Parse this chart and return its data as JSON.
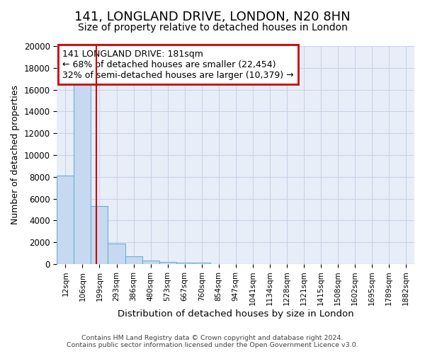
{
  "title": "141, LONGLAND DRIVE, LONDON, N20 8HN",
  "subtitle": "Size of property relative to detached houses in London",
  "xlabel": "Distribution of detached houses by size in London",
  "ylabel": "Number of detached properties",
  "footer_line1": "Contains HM Land Registry data © Crown copyright and database right 2024.",
  "footer_line2": "Contains public sector information licensed under the Open Government Licence v3.0.",
  "annotation_title": "141 LONGLAND DRIVE: 181sqm",
  "annotation_line2": "← 68% of detached houses are smaller (22,454)",
  "annotation_line3": "32% of semi-detached houses are larger (10,379) →",
  "bar_labels": [
    "12sqm",
    "106sqm",
    "199sqm",
    "293sqm",
    "386sqm",
    "480sqm",
    "573sqm",
    "667sqm",
    "760sqm",
    "854sqm",
    "947sqm",
    "1041sqm",
    "1134sqm",
    "1228sqm",
    "1321sqm",
    "1415sqm",
    "1508sqm",
    "1602sqm",
    "1695sqm",
    "1789sqm",
    "1882sqm"
  ],
  "bar_values": [
    8100,
    16600,
    5300,
    1850,
    700,
    320,
    200,
    160,
    120,
    0,
    0,
    0,
    0,
    0,
    0,
    0,
    0,
    0,
    0,
    0,
    0
  ],
  "bar_color": "#c6d9f0",
  "bar_edge_color": "#6baed6",
  "vline_color": "#cc0000",
  "vline_x": 1.82,
  "ylim": [
    0,
    20000
  ],
  "yticks": [
    0,
    2000,
    4000,
    6000,
    8000,
    10000,
    12000,
    14000,
    16000,
    18000,
    20000
  ],
  "grid_color": "#c8d4e8",
  "bg_color": "#e8eef8",
  "annotation_box_color": "#cc0000",
  "annotation_fontsize": 9,
  "title_fontsize": 13,
  "subtitle_fontsize": 10
}
